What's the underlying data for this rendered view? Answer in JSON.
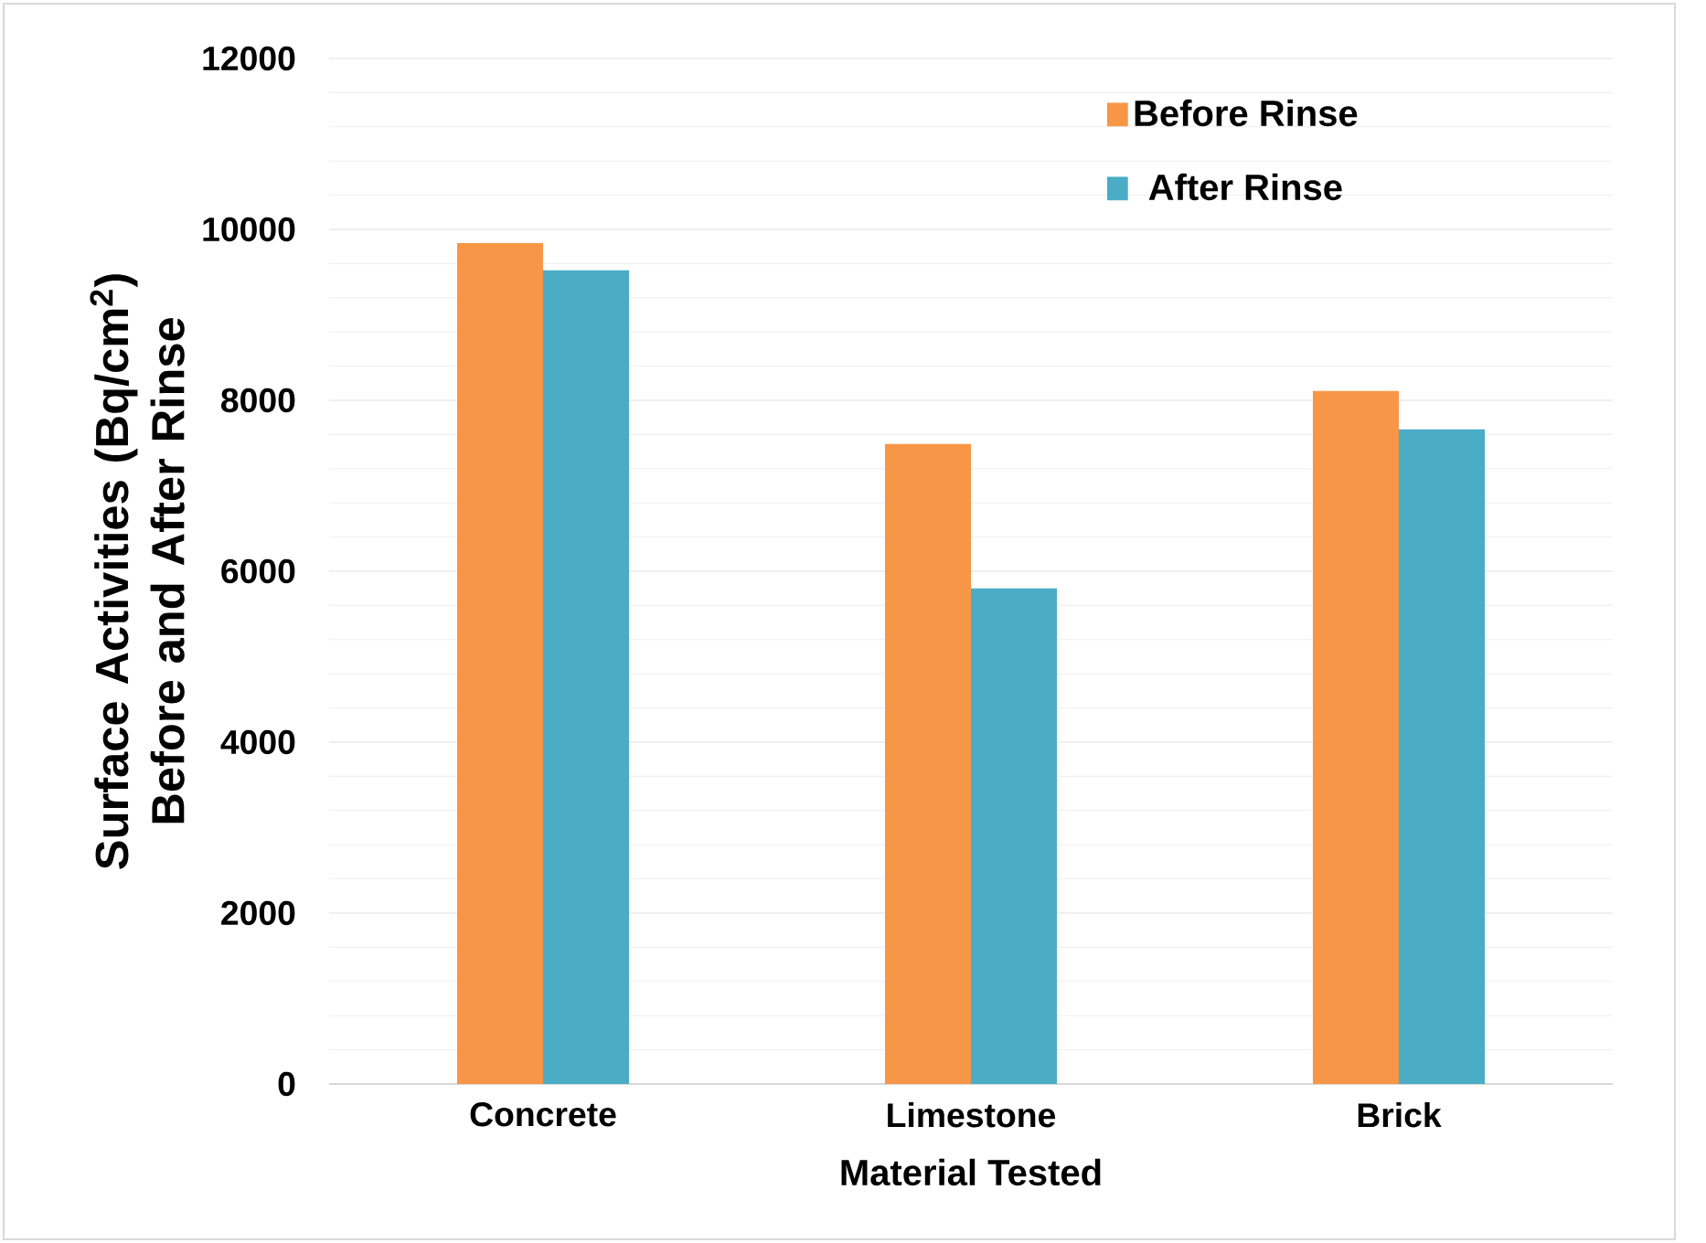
{
  "chart_data": {
    "type": "bar",
    "xlabel": "Material Tested",
    "ylabel": "Surface Activities (Bq/cm$^{2}$) Before and After Rinse",
    "categories": [
      "Concrete",
      "Limestone",
      "Brick"
    ],
    "series": [
      {
        "name": "Before Rinse",
        "color": "#f79646",
        "values": [
          9840,
          7490,
          8110
        ]
      },
      {
        "name": "After Rinse",
        "color": "#4bacc6",
        "values": [
          9520,
          5800,
          7660
        ]
      }
    ],
    "ylim": [
      0,
      12000
    ],
    "yticks": [
      0,
      2000,
      4000,
      6000,
      8000,
      10000,
      12000
    ],
    "grid": "y",
    "legend": "top right"
  }
}
